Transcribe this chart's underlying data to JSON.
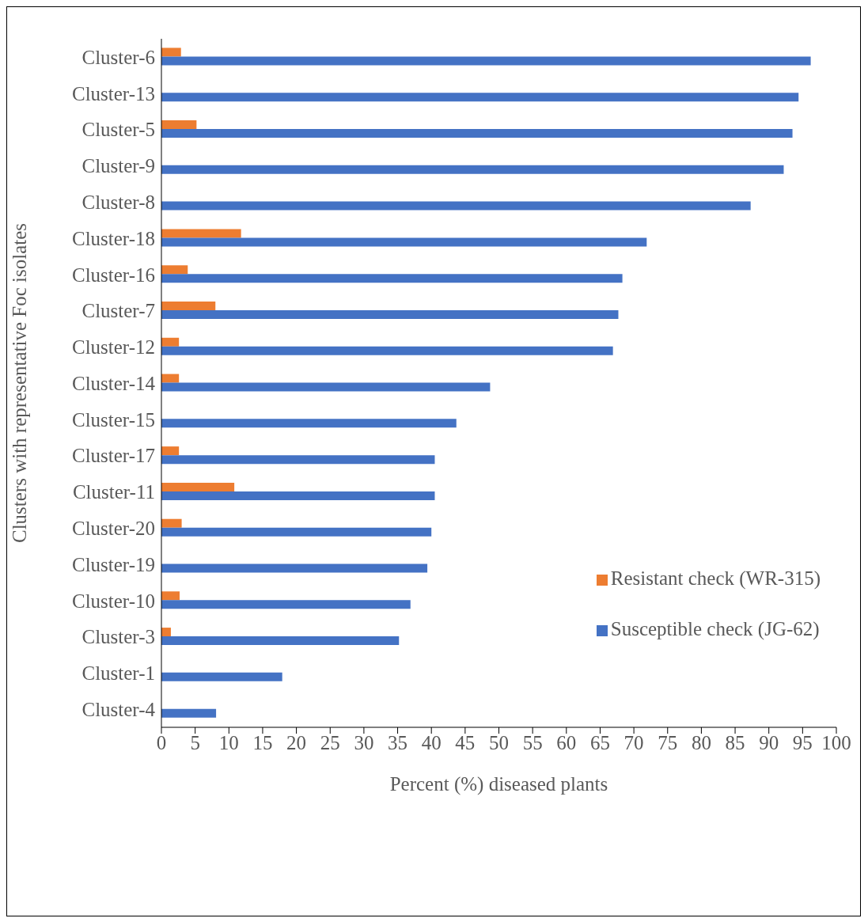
{
  "chart_data": {
    "type": "bar",
    "orientation": "horizontal",
    "xlabel": "Percent (%) diseased plants",
    "ylabel": "Clusters with representative Foc isolates",
    "categories": [
      "Cluster-6",
      "Cluster-13",
      "Cluster-5",
      "Cluster-9",
      "Cluster-8",
      "Cluster-18",
      "Cluster-16",
      "Cluster-7",
      "Cluster-12",
      "Cluster-14",
      "Cluster-15",
      "Cluster-17",
      "Cluster-11",
      "Cluster-20",
      "Cluster-19",
      "Cluster-10",
      "Cluster-3",
      "Cluster-1",
      "Cluster-4"
    ],
    "series": [
      {
        "name": "Resistant check (WR-315)",
        "color": "#ed7d31",
        "values": [
          2.9,
          0,
          5.2,
          0,
          0,
          11.8,
          3.9,
          8.0,
          2.6,
          2.6,
          0,
          2.6,
          10.8,
          3.0,
          0,
          2.7,
          1.4,
          0,
          0
        ]
      },
      {
        "name": "Susceptible check (JG-62)",
        "color": "#4472c4",
        "values": [
          96.2,
          94.4,
          93.5,
          92.2,
          87.3,
          71.9,
          68.3,
          67.7,
          66.9,
          48.7,
          43.7,
          40.5,
          40.5,
          40.0,
          39.4,
          36.9,
          35.2,
          17.9,
          8.1
        ]
      }
    ],
    "xlim": [
      0,
      100
    ],
    "xticks": [
      0,
      5,
      10,
      15,
      20,
      25,
      30,
      35,
      40,
      45,
      50,
      55,
      60,
      65,
      70,
      75,
      80,
      85,
      90,
      95,
      100
    ],
    "grid": false,
    "legend": "bottom right"
  }
}
